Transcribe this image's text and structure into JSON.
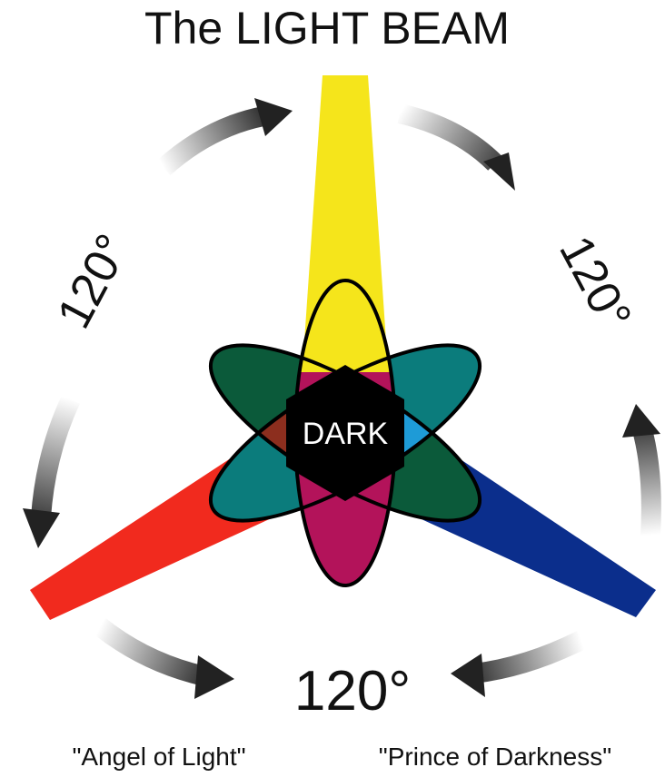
{
  "title": "The LIGHT BEAM",
  "center_label": "DARK",
  "angles": {
    "left": "120°",
    "right": "120°",
    "bottom": "120°"
  },
  "captions": {
    "left": "\"Angel of Light\"",
    "right": "\"Prince of Darkness\""
  },
  "colors": {
    "yellow": "#F5E51B",
    "red": "#F12A1E",
    "blue": "#0B2E8C",
    "dark_green": "#0B5A3A",
    "green": "#39A935",
    "teal": "#0B7C7C",
    "cyan": "#1E9BD7",
    "brown": "#8C2E1E",
    "magenta": "#C22A8C",
    "crimson": "#B3135A",
    "navy": "#0B1E5A",
    "center": "#000000"
  }
}
